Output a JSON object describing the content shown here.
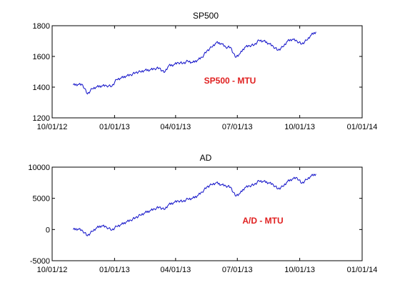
{
  "chart_data": [
    {
      "type": "line",
      "title": "SP500",
      "annotation": "SP500 - MTU",
      "xlabel": "",
      "ylabel": "",
      "x_ticks": [
        "10/01/12",
        "01/01/13",
        "04/01/13",
        "07/01/13",
        "10/01/13",
        "01/01/14"
      ],
      "y_ticks": [
        1200,
        1400,
        1600,
        1800
      ],
      "y_tick_labels": [
        "1200",
        "1400",
        "1600",
        "1800"
      ],
      "ylim": [
        1200,
        1800
      ],
      "grid": false,
      "series_color": "#1010c8",
      "annotation_color": "#e02020",
      "series": [
        {
          "x": [
            "2012-11-01",
            "2012-11-08",
            "2012-11-15",
            "2012-11-22",
            "2012-11-29",
            "2012-12-06",
            "2012-12-13",
            "2012-12-20",
            "2012-12-28",
            "2013-01-04",
            "2013-01-11",
            "2013-01-18",
            "2013-01-25",
            "2013-02-01",
            "2013-02-08",
            "2013-02-15",
            "2013-02-22",
            "2013-03-01",
            "2013-03-08",
            "2013-03-15",
            "2013-03-22",
            "2013-03-29",
            "2013-04-05",
            "2013-04-12",
            "2013-04-19",
            "2013-04-26",
            "2013-05-03",
            "2013-05-10",
            "2013-05-17",
            "2013-05-24",
            "2013-05-31",
            "2013-06-07",
            "2013-06-14",
            "2013-06-21",
            "2013-06-28",
            "2013-07-05",
            "2013-07-12",
            "2013-07-19",
            "2013-07-26",
            "2013-08-02",
            "2013-08-09",
            "2013-08-16",
            "2013-08-23",
            "2013-08-30",
            "2013-09-06",
            "2013-09-13",
            "2013-09-20",
            "2013-09-27",
            "2013-10-04",
            "2013-10-11",
            "2013-10-18",
            "2013-10-25"
          ],
          "y": [
            1414,
            1418,
            1415,
            1355,
            1390,
            1402,
            1408,
            1410,
            1405,
            1450,
            1460,
            1472,
            1480,
            1495,
            1500,
            1510,
            1512,
            1520,
            1525,
            1495,
            1540,
            1545,
            1560,
            1555,
            1570,
            1560,
            1575,
            1595,
            1635,
            1660,
            1690,
            1685,
            1660,
            1660,
            1595,
            1618,
            1660,
            1670,
            1675,
            1705,
            1700,
            1685,
            1665,
            1640,
            1662,
            1700,
            1712,
            1700,
            1680,
            1705,
            1740,
            1760
          ]
        }
      ]
    },
    {
      "type": "line",
      "title": "AD",
      "annotation": "A/D - MTU",
      "xlabel": "",
      "ylabel": "",
      "x_ticks": [
        "10/01/12",
        "01/01/13",
        "04/01/13",
        "07/01/13",
        "10/01/13",
        "01/01/14"
      ],
      "y_ticks": [
        -5000,
        0,
        5000,
        10000
      ],
      "y_tick_labels": [
        "-5000",
        "0",
        "5000",
        "10000"
      ],
      "ylim": [
        -5000,
        10000
      ],
      "grid": false,
      "series_color": "#1010c8",
      "annotation_color": "#e02020",
      "series": [
        {
          "x": [
            "2012-11-01",
            "2012-11-08",
            "2012-11-15",
            "2012-11-22",
            "2012-11-29",
            "2012-12-06",
            "2012-12-13",
            "2012-12-20",
            "2012-12-28",
            "2013-01-04",
            "2013-01-11",
            "2013-01-18",
            "2013-01-25",
            "2013-02-01",
            "2013-02-08",
            "2013-02-15",
            "2013-02-22",
            "2013-03-01",
            "2013-03-08",
            "2013-03-15",
            "2013-03-22",
            "2013-03-29",
            "2013-04-05",
            "2013-04-12",
            "2013-04-19",
            "2013-04-26",
            "2013-05-03",
            "2013-05-10",
            "2013-05-17",
            "2013-05-24",
            "2013-05-31",
            "2013-06-07",
            "2013-06-14",
            "2013-06-21",
            "2013-06-28",
            "2013-07-05",
            "2013-07-12",
            "2013-07-19",
            "2013-07-26",
            "2013-08-02",
            "2013-08-09",
            "2013-08-16",
            "2013-08-23",
            "2013-08-30",
            "2013-09-06",
            "2013-09-13",
            "2013-09-20",
            "2013-09-27",
            "2013-10-04",
            "2013-10-11",
            "2013-10-18",
            "2013-10-25"
          ],
          "y": [
            0,
            100,
            -200,
            -1000,
            -300,
            300,
            600,
            400,
            -100,
            500,
            800,
            1200,
            1500,
            1900,
            2300,
            2700,
            3000,
            3300,
            3600,
            3200,
            4000,
            4300,
            4600,
            4500,
            4900,
            5000,
            5400,
            6000,
            6800,
            7200,
            7500,
            7200,
            7000,
            6800,
            5400,
            5800,
            6700,
            7000,
            7200,
            7800,
            7700,
            7500,
            7200,
            6500,
            6900,
            7700,
            8100,
            8300,
            7400,
            8000,
            8600,
            8900
          ]
        }
      ]
    }
  ]
}
